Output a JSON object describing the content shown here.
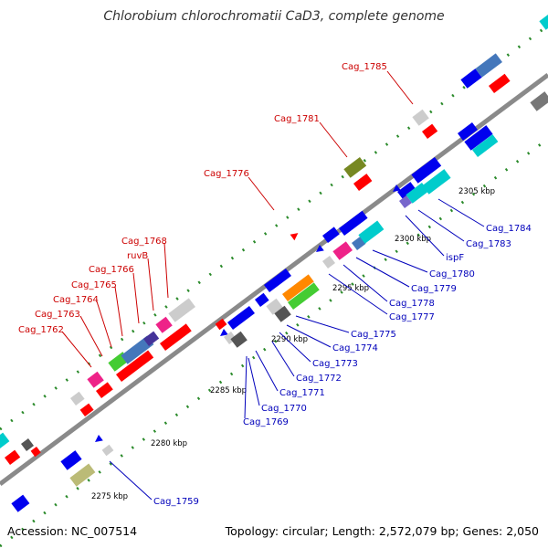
{
  "title": "Chlorobium chlorochromatii CaD3, complete genome",
  "footer": {
    "accession": "Accession: NC_007514",
    "info": "Topology: circular; Length: 2,572,079 bp; Genes: 2,050"
  },
  "colors": {
    "red_label": "#cc0000",
    "blue_label": "#0000bb",
    "backbone": "#8a8a8a",
    "ticks": "#2a8a2a"
  },
  "kbp_labels": [
    {
      "id": "k2275",
      "text": "2275 kbp"
    },
    {
      "id": "k2280",
      "text": "2280 kbp"
    },
    {
      "id": "k2285",
      "text": "2285 kbp"
    },
    {
      "id": "k2290",
      "text": "2290 kbp"
    },
    {
      "id": "k2295",
      "text": "2295 kbp"
    },
    {
      "id": "k2300",
      "text": "2300 kbp"
    },
    {
      "id": "k2305",
      "text": "2305 kbp"
    }
  ],
  "upper_labels": [
    {
      "id": "cag1762",
      "text": "Cag_1762"
    },
    {
      "id": "cag1763",
      "text": "Cag_1763"
    },
    {
      "id": "cag1764",
      "text": "Cag_1764"
    },
    {
      "id": "cag1765",
      "text": "Cag_1765"
    },
    {
      "id": "cag1766",
      "text": "Cag_1766"
    },
    {
      "id": "ruvb",
      "text": "ruvB"
    },
    {
      "id": "cag1768",
      "text": "Cag_1768"
    },
    {
      "id": "cag1776",
      "text": "Cag_1776"
    },
    {
      "id": "cag1781",
      "text": "Cag_1781"
    },
    {
      "id": "cag1785",
      "text": "Cag_1785"
    }
  ],
  "lower_labels": [
    {
      "id": "cag1759",
      "text": "Cag_1759"
    },
    {
      "id": "cag1769",
      "text": "Cag_1769"
    },
    {
      "id": "cag1770",
      "text": "Cag_1770"
    },
    {
      "id": "cag1771",
      "text": "Cag_1771"
    },
    {
      "id": "cag1772",
      "text": "Cag_1772"
    },
    {
      "id": "cag1773",
      "text": "Cag_1773"
    },
    {
      "id": "cag1774",
      "text": "Cag_1774"
    },
    {
      "id": "cag1775",
      "text": "Cag_1775"
    },
    {
      "id": "cag1777",
      "text": "Cag_1777"
    },
    {
      "id": "cag1778",
      "text": "Cag_1778"
    },
    {
      "id": "cag1779",
      "text": "Cag_1779"
    },
    {
      "id": "cag1780",
      "text": "Cag_1780"
    },
    {
      "id": "ispf",
      "text": "ispF"
    },
    {
      "id": "cag1783",
      "text": "Cag_1783"
    },
    {
      "id": "cag1784",
      "text": "Cag_1784"
    }
  ]
}
